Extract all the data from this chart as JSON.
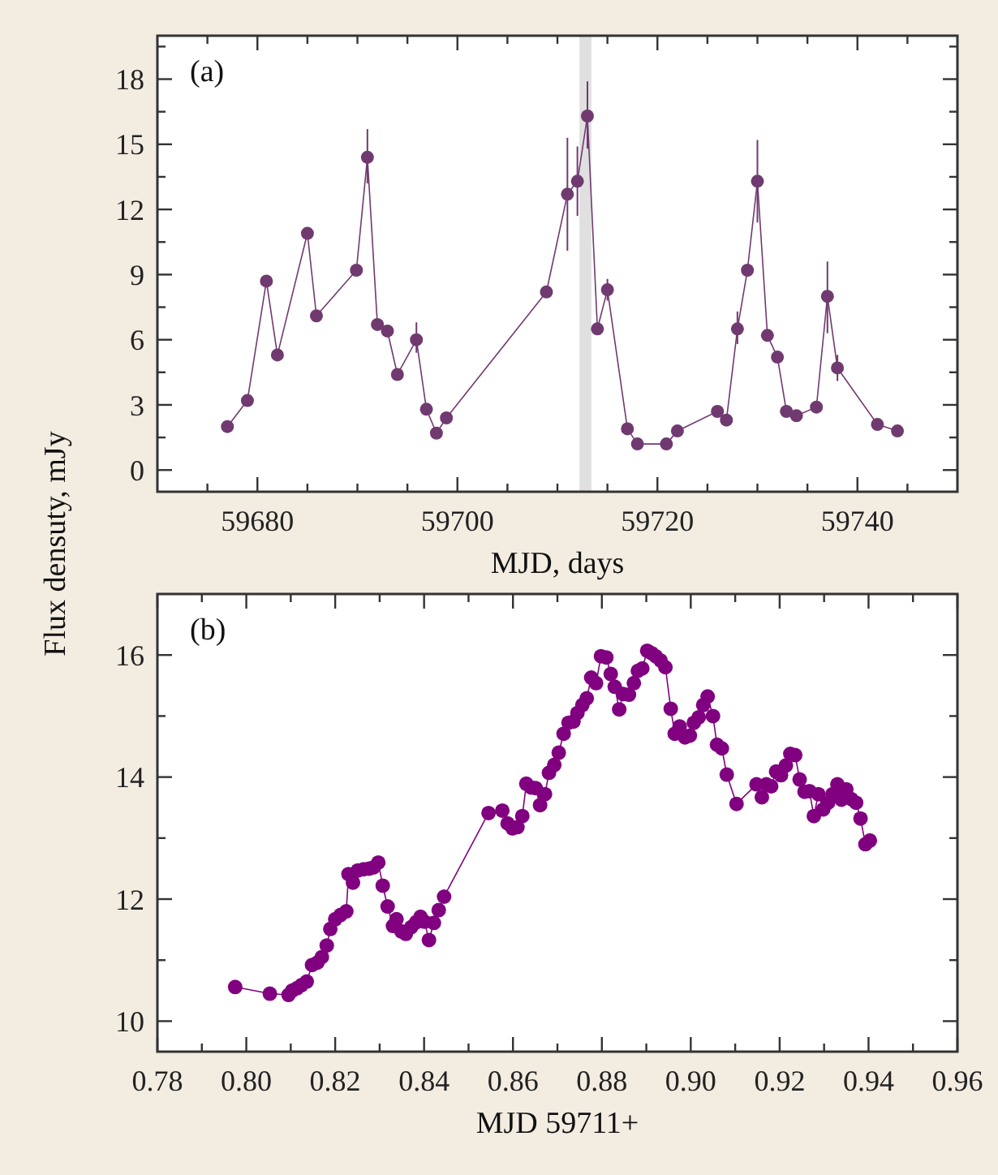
{
  "chart_data": [
    {
      "type": "line",
      "title": "(a)",
      "xlabel": "MJD, days",
      "ylabel": "Flux densuty, mJy",
      "marker": "circle",
      "grid": false,
      "xlim": [
        59670,
        59750
      ],
      "ylim": [
        -1,
        20
      ],
      "xticks": [
        {
          "value": 59675,
          "label": null
        },
        59680,
        {
          "value": 59685,
          "label": null
        },
        {
          "value": 59690,
          "label": null
        },
        {
          "value": 59695,
          "label": null
        },
        59700,
        {
          "value": 59705,
          "label": null
        },
        {
          "value": 59710,
          "label": null
        },
        {
          "value": 59715,
          "label": null
        },
        59720,
        {
          "value": 59725,
          "label": null
        },
        {
          "value": 59730,
          "label": null
        },
        {
          "value": 59735,
          "label": null
        },
        59740,
        {
          "value": 59745,
          "label": null
        }
      ],
      "yticks": [
        0,
        {
          "value": 1.5,
          "label": null
        },
        3,
        {
          "value": 4.5,
          "label": null
        },
        6,
        {
          "value": 7.5,
          "label": null
        },
        9,
        {
          "value": 10.5,
          "label": null
        },
        12,
        {
          "value": 13.5,
          "label": null
        },
        15,
        {
          "value": 16.5,
          "label": null
        },
        18,
        {
          "value": 19.5,
          "label": null
        }
      ],
      "bands": [
        {
          "axis": "x",
          "from": 59712.2,
          "to": 59713.4,
          "color": "#e0e0e0"
        }
      ],
      "series": [
        {
          "color": "#703a70",
          "x": [
            59677,
            59679,
            59680.9,
            59682,
            59685,
            59685.9,
            59689.9,
            59691,
            59692,
            59693,
            59694,
            59695.9,
            59696.9,
            59697.9,
            59698.9,
            59708.9,
            59711,
            59712,
            59713,
            59714,
            59715,
            59717,
            59718,
            59720.9,
            59722,
            59726,
            59726.9,
            59728,
            59729,
            59730,
            59731,
            59732,
            59732.9,
            59733.9,
            59735.9,
            59737,
            59738,
            59742,
            59744
          ],
          "values": [
            2.0,
            3.2,
            8.7,
            5.3,
            10.9,
            7.1,
            9.2,
            14.4,
            6.7,
            6.4,
            4.4,
            6.0,
            2.8,
            1.7,
            2.4,
            8.2,
            12.7,
            13.3,
            16.3,
            6.5,
            8.3,
            1.9,
            1.2,
            1.2,
            1.8,
            2.7,
            2.3,
            6.5,
            9.2,
            13.3,
            6.2,
            5.2,
            2.7,
            2.5,
            2.9,
            8.0,
            4.7,
            2.1,
            1.8
          ],
          "errors": [
            null,
            null,
            null,
            null,
            null,
            null,
            null,
            [
              13.2,
              15.7
            ],
            null,
            null,
            null,
            [
              5.4,
              6.8
            ],
            null,
            null,
            null,
            null,
            [
              10.1,
              15.3
            ],
            [
              11.7,
              14.9
            ],
            [
              14.8,
              17.9
            ],
            null,
            [
              7.8,
              8.8
            ],
            null,
            null,
            null,
            null,
            null,
            null,
            [
              5.8,
              7.3
            ],
            null,
            [
              11.4,
              15.2
            ],
            null,
            null,
            null,
            null,
            null,
            [
              6.3,
              9.6
            ],
            [
              4.1,
              5.3
            ],
            null,
            null
          ]
        }
      ]
    },
    {
      "type": "line",
      "title": "(b)",
      "xlabel": "MJD 59711+",
      "marker": "circle",
      "grid": false,
      "xlim": [
        0.78,
        0.96
      ],
      "ylim": [
        9.5,
        17
      ],
      "xticks": [
        {
          "value": 0.78,
          "label": "0.78"
        },
        {
          "value": 0.79,
          "label": null
        },
        {
          "value": 0.8,
          "label": "0.80"
        },
        {
          "value": 0.81,
          "label": null
        },
        {
          "value": 0.82,
          "label": "0.82"
        },
        {
          "value": 0.83,
          "label": null
        },
        {
          "value": 0.84,
          "label": "0.84"
        },
        {
          "value": 0.85,
          "label": null
        },
        {
          "value": 0.86,
          "label": "0.86"
        },
        {
          "value": 0.87,
          "label": null
        },
        {
          "value": 0.88,
          "label": "0.88"
        },
        {
          "value": 0.89,
          "label": null
        },
        {
          "value": 0.9,
          "label": "0.90"
        },
        {
          "value": 0.91,
          "label": null
        },
        {
          "value": 0.92,
          "label": "0.92"
        },
        {
          "value": 0.93,
          "label": null
        },
        {
          "value": 0.94,
          "label": "0.94"
        },
        {
          "value": 0.95,
          "label": null
        },
        {
          "value": 0.96,
          "label": "0.96"
        }
      ],
      "yticks": [
        10,
        {
          "value": 11,
          "label": null
        },
        12,
        {
          "value": 13,
          "label": null
        },
        14,
        {
          "value": 15,
          "label": null
        },
        16
      ],
      "series": [
        {
          "color": "#800080",
          "x": [
            0.7975,
            0.8053,
            0.8095,
            0.8103,
            0.8114,
            0.8124,
            0.8136,
            0.8148,
            0.816,
            0.817,
            0.8181,
            0.8189,
            0.82,
            0.8212,
            0.8225,
            0.823,
            0.824,
            0.8251,
            0.8264,
            0.8276,
            0.8286,
            0.8297,
            0.8307,
            0.8318,
            0.833,
            0.8338,
            0.8349,
            0.8359,
            0.8371,
            0.8382,
            0.8392,
            0.8401,
            0.8411,
            0.8422,
            0.8433,
            0.8445,
            0.8545,
            0.8576,
            0.8588,
            0.8599,
            0.861,
            0.8621,
            0.863,
            0.8641,
            0.8651,
            0.8661,
            0.8672,
            0.8681,
            0.8693,
            0.8703,
            0.8714,
            0.8725,
            0.8736,
            0.8745,
            0.8756,
            0.8766,
            0.8776,
            0.8787,
            0.8798,
            0.881,
            0.882,
            0.8829,
            0.8839,
            0.8848,
            0.8861,
            0.8872,
            0.8881,
            0.8891,
            0.8902,
            0.8912,
            0.8921,
            0.8932,
            0.8943,
            0.8955,
            0.8964,
            0.8975,
            0.8987,
            0.8998,
            0.9007,
            0.9018,
            0.9028,
            0.9038,
            0.905,
            0.9059,
            0.907,
            0.9081,
            0.9103,
            0.9148,
            0.916,
            0.917,
            0.9181,
            0.9192,
            0.9203,
            0.9214,
            0.9224,
            0.9235,
            0.9245,
            0.9256,
            0.9267,
            0.9277,
            0.9287,
            0.9298,
            0.9309,
            0.9319,
            0.933,
            0.9339,
            0.935,
            0.9361,
            0.9372,
            0.9382,
            0.9393,
            0.9403
          ],
          "values": [
            10.56,
            10.45,
            10.43,
            10.5,
            10.54,
            10.59,
            10.65,
            10.92,
            10.96,
            11.05,
            11.24,
            11.51,
            11.67,
            11.74,
            11.8,
            12.41,
            12.27,
            12.47,
            12.49,
            12.5,
            12.52,
            12.6,
            12.22,
            11.88,
            11.56,
            11.67,
            11.47,
            11.43,
            11.54,
            11.62,
            11.71,
            11.63,
            11.33,
            11.61,
            11.82,
            12.04,
            13.41,
            13.45,
            13.24,
            13.16,
            13.18,
            13.36,
            13.89,
            13.83,
            13.82,
            13.54,
            13.72,
            14.07,
            14.2,
            14.4,
            14.71,
            14.89,
            14.91,
            15.05,
            15.18,
            15.29,
            15.63,
            15.54,
            15.98,
            15.96,
            15.69,
            15.48,
            15.11,
            15.36,
            15.35,
            15.54,
            15.74,
            15.78,
            16.07,
            16.03,
            15.98,
            15.91,
            15.8,
            15.12,
            14.71,
            14.83,
            14.65,
            14.68,
            14.89,
            14.98,
            15.18,
            15.32,
            15.0,
            14.53,
            14.47,
            14.04,
            13.56,
            13.88,
            13.67,
            13.88,
            13.85,
            14.09,
            14.03,
            14.19,
            14.38,
            14.36,
            13.96,
            13.76,
            13.77,
            13.36,
            13.72,
            13.47,
            13.58,
            13.72,
            13.88,
            13.63,
            13.8,
            13.64,
            13.58,
            13.32,
            12.9,
            12.96
          ]
        }
      ]
    }
  ]
}
